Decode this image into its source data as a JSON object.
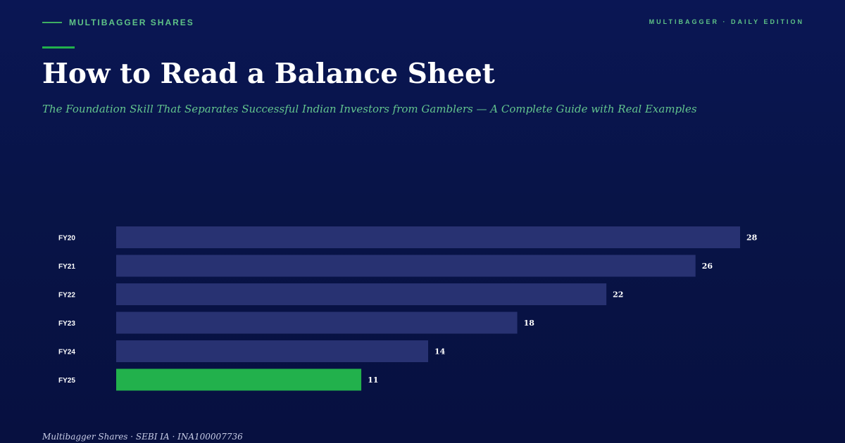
{
  "header": {
    "brand": "MULTIBAGGER SHARES",
    "edition": "MULTIBAGGER · DAILY EDITION"
  },
  "title": "How to Read a Balance Sheet",
  "subtitle": "The Foundation Skill That Separates Successful Indian Investors from Gamblers — A Complete Guide with Real Examples",
  "footer": "Multibagger Shares · SEBI IA · INA100007736",
  "colors": {
    "background": "#081447",
    "accent": "#22b14c",
    "bar": "#283272",
    "highlight_bar": "#22b14c",
    "label": "#ffffff"
  },
  "chart_data": {
    "type": "bar",
    "orientation": "horizontal",
    "categories": [
      "FY20",
      "FY21",
      "FY22",
      "FY23",
      "FY24",
      "FY25"
    ],
    "values": [
      28,
      26,
      22,
      18,
      14,
      11
    ],
    "highlight_index": 5,
    "title": "",
    "xlabel": "",
    "ylabel": "",
    "xlim": [
      0,
      28
    ],
    "grid": false,
    "legend": "none"
  }
}
